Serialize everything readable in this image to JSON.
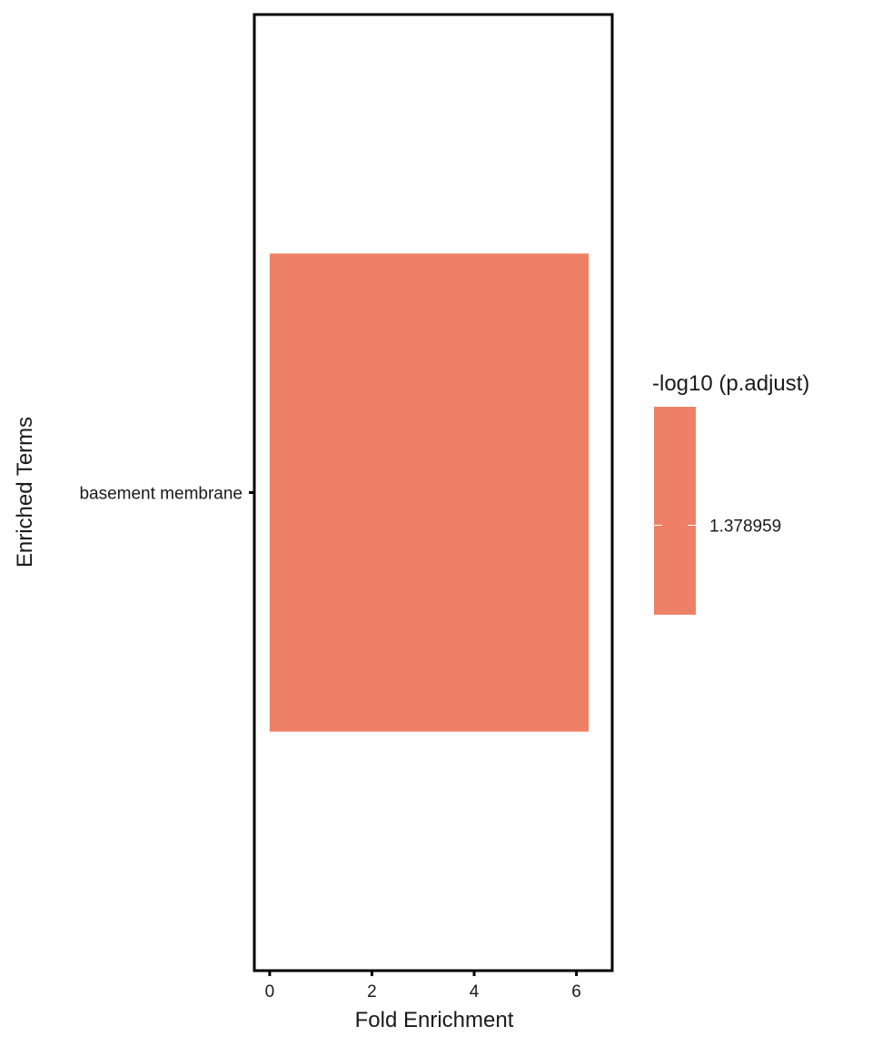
{
  "chart_data": {
    "type": "bar",
    "orientation": "horizontal",
    "categories": [
      "basement membrane"
    ],
    "values": [
      6.24
    ],
    "xlabel": "Fold Enrichment",
    "ylabel": "Enriched Terms",
    "xlim": [
      -0.3,
      6.7
    ],
    "xticks": [
      0,
      2,
      4,
      6
    ],
    "grid": false,
    "bar_color": "#ED8066",
    "legend": {
      "title": "-log10 (p.adjust)",
      "placement": "right",
      "type": "colorbar",
      "color": "#ED8066",
      "values": [
        1.378959
      ],
      "labels": [
        "1.378959"
      ]
    }
  }
}
